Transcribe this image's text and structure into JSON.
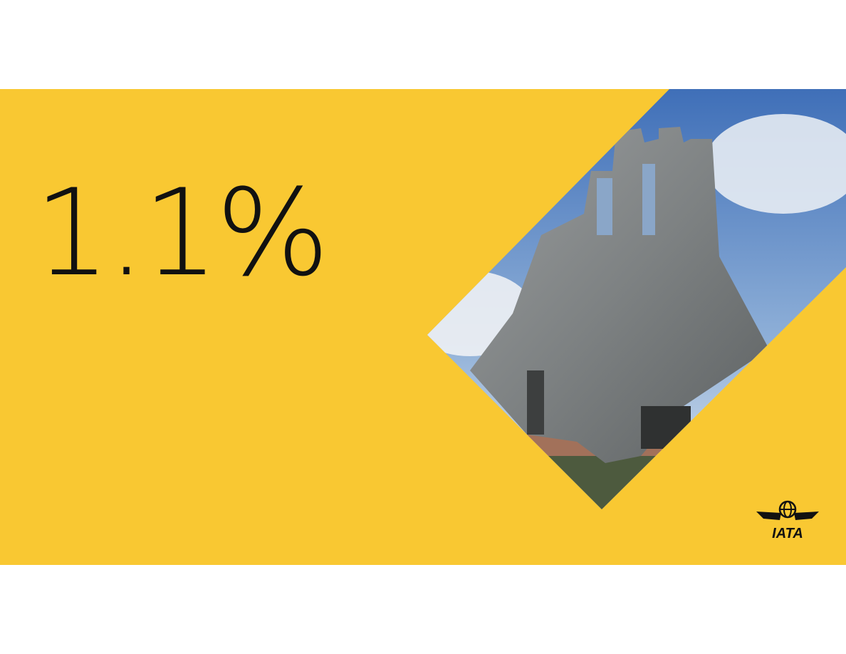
{
  "slide": {
    "headline": "1.1%",
    "logo": "IATA"
  }
}
